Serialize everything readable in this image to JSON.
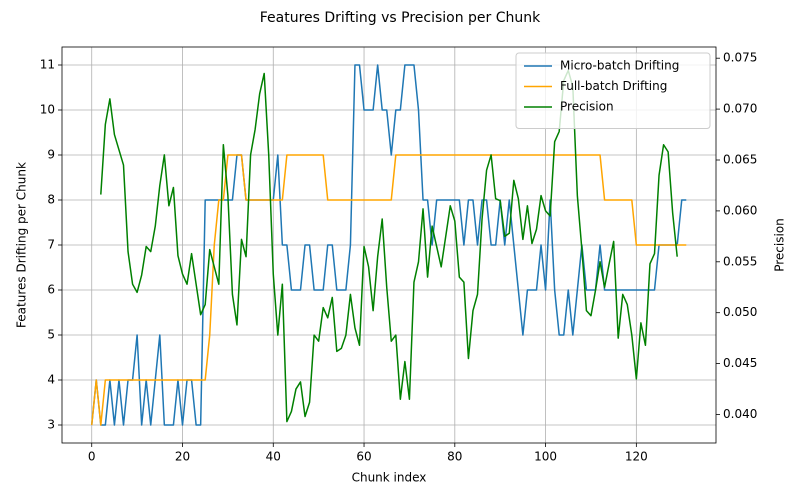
{
  "chart_data": {
    "type": "line",
    "title": "Features Drifting vs Precision per Chunk",
    "xlabel": "Chunk index",
    "ylabel": "Features Drifting per Chunk",
    "y2label": "Precision",
    "x": [
      0,
      1,
      2,
      3,
      4,
      5,
      6,
      7,
      8,
      9,
      10,
      11,
      12,
      13,
      14,
      15,
      16,
      17,
      18,
      19,
      20,
      21,
      22,
      23,
      24,
      25,
      26,
      27,
      28,
      29,
      30,
      31,
      32,
      33,
      34,
      35,
      36,
      37,
      38,
      39,
      40,
      41,
      42,
      43,
      44,
      45,
      46,
      47,
      48,
      49,
      50,
      51,
      52,
      53,
      54,
      55,
      56,
      57,
      58,
      59,
      60,
      61,
      62,
      63,
      64,
      65,
      66,
      67,
      68,
      69,
      70,
      71,
      72,
      73,
      74,
      75,
      76,
      77,
      78,
      79,
      80,
      81,
      82,
      83,
      84,
      85,
      86,
      87,
      88,
      89,
      90,
      91,
      92,
      93,
      94,
      95,
      96,
      97,
      98,
      99,
      100,
      101,
      102,
      103,
      104,
      105,
      106,
      107,
      108,
      109,
      110,
      111,
      112,
      113,
      114,
      115,
      116,
      117,
      118,
      119,
      120,
      121,
      122,
      123,
      124,
      125,
      126,
      127,
      128,
      129,
      130,
      131
    ],
    "xlim": [
      -6.55,
      137.55
    ],
    "xticks": [
      0,
      20,
      40,
      60,
      80,
      100,
      120
    ],
    "ylim": [
      2.6,
      11.4
    ],
    "yticks": [
      3,
      4,
      5,
      6,
      7,
      8,
      9,
      10,
      11
    ],
    "y2lim": [
      0.0372,
      0.0761
    ],
    "y2ticks": [
      {
        "value": 0.04,
        "label": "0.040"
      },
      {
        "value": 0.045,
        "label": "0.045"
      },
      {
        "value": 0.05,
        "label": "0.050"
      },
      {
        "value": 0.055,
        "label": "0.055"
      },
      {
        "value": 0.06,
        "label": "0.060"
      },
      {
        "value": 0.065,
        "label": "0.065"
      },
      {
        "value": 0.07,
        "label": "0.070"
      },
      {
        "value": 0.075,
        "label": "0.075"
      }
    ],
    "grid": true,
    "legend": "upper right",
    "series": [
      {
        "name": "Micro-batch Drifting",
        "color": "#1f77b4",
        "axis": "y",
        "values": [
          3,
          4,
          3,
          3,
          4,
          3,
          4,
          3,
          4,
          4,
          5,
          3,
          4,
          3,
          4,
          5,
          3,
          3,
          3,
          4,
          3,
          4,
          4,
          3,
          3,
          8,
          8,
          8,
          8,
          8,
          8,
          8,
          9,
          9,
          8,
          8,
          8,
          8,
          8,
          8,
          8,
          9,
          7,
          7,
          6,
          6,
          6,
          7,
          7,
          6,
          6,
          6,
          7,
          7,
          6,
          6,
          6,
          7,
          11,
          11,
          10,
          10,
          10,
          11,
          10,
          10,
          9,
          10,
          10,
          11,
          11,
          11,
          10,
          8,
          8,
          7,
          8,
          8,
          8,
          8,
          8,
          8,
          7,
          8,
          8,
          7,
          8,
          8,
          7,
          7,
          8,
          7,
          8,
          7,
          6,
          5,
          6,
          6,
          6,
          7,
          6,
          8,
          6,
          5,
          5,
          6,
          5,
          6,
          7,
          6,
          6,
          6,
          7,
          6,
          6,
          6,
          6,
          6,
          6,
          6,
          6,
          6,
          6,
          6,
          6,
          7,
          7,
          7,
          7,
          7,
          8,
          8
        ]
      },
      {
        "name": "Full-batch Drifting",
        "color": "#ffa500",
        "axis": "y",
        "values": [
          3,
          4,
          3,
          4,
          4,
          4,
          4,
          4,
          4,
          4,
          4,
          4,
          4,
          4,
          4,
          4,
          4,
          4,
          4,
          4,
          4,
          4,
          4,
          4,
          4,
          4,
          5,
          7,
          8,
          8,
          9,
          9,
          9,
          9,
          8,
          8,
          8,
          8,
          8,
          8,
          8,
          8,
          8,
          9,
          9,
          9,
          9,
          9,
          9,
          9,
          9,
          9,
          8,
          8,
          8,
          8,
          8,
          8,
          8,
          8,
          8,
          8,
          8,
          8,
          8,
          8,
          8,
          9,
          9,
          9,
          9,
          9,
          9,
          9,
          9,
          9,
          9,
          9,
          9,
          9,
          9,
          9,
          9,
          9,
          9,
          9,
          9,
          9,
          9,
          9,
          9,
          9,
          9,
          9,
          9,
          9,
          9,
          9,
          9,
          9,
          9,
          9,
          9,
          9,
          9,
          9,
          9,
          9,
          9,
          9,
          9,
          9,
          9,
          8,
          8,
          8,
          8,
          8,
          8,
          8,
          7,
          7,
          7,
          7,
          7,
          7,
          7,
          7,
          7,
          7,
          7,
          7
        ]
      },
      {
        "name": "Precision",
        "color": "#008000",
        "axis": "y2",
        "values": [
          null,
          null,
          0.0616,
          0.0685,
          0.071,
          0.0675,
          0.066,
          0.0645,
          0.056,
          0.0528,
          0.052,
          0.0537,
          0.0565,
          0.056,
          0.0585,
          0.0625,
          0.0655,
          0.0605,
          0.0623,
          0.0556,
          0.0538,
          0.0528,
          0.0558,
          0.0528,
          0.0498,
          0.0508,
          0.0562,
          0.0545,
          0.0528,
          0.0665,
          0.0615,
          0.0518,
          0.0488,
          0.0572,
          0.0555,
          0.0655,
          0.068,
          0.0715,
          0.0735,
          0.0655,
          0.0538,
          0.0478,
          0.0528,
          0.0393,
          0.0403,
          0.0425,
          0.0432,
          0.0398,
          0.0412,
          0.0478,
          0.0472,
          0.0505,
          0.0495,
          0.0515,
          0.0462,
          0.0465,
          0.0478,
          0.0518,
          0.0485,
          0.0468,
          0.0565,
          0.0545,
          0.0502,
          0.0555,
          0.0592,
          0.0525,
          0.0472,
          0.0478,
          0.0415,
          0.0452,
          0.0415,
          0.053,
          0.055,
          0.0602,
          0.0535,
          0.0585,
          0.0565,
          0.0545,
          0.0575,
          0.0605,
          0.059,
          0.0535,
          0.053,
          0.0455,
          0.0502,
          0.0518,
          0.0592,
          0.064,
          0.0655,
          0.0612,
          0.061,
          0.0575,
          0.0578,
          0.063,
          0.0612,
          0.0572,
          0.0605,
          0.0568,
          0.0582,
          0.0615,
          0.06,
          0.0595,
          0.0668,
          0.0678,
          0.0728,
          0.0738,
          0.0722,
          0.0615,
          0.0562,
          0.0502,
          0.0497,
          0.0522,
          0.055,
          0.0525,
          0.0548,
          0.057,
          0.0475,
          0.0518,
          0.0508,
          0.0478,
          0.0435,
          0.049,
          0.0468,
          0.0548,
          0.0558,
          0.0635,
          0.0665,
          0.0658,
          0.0598,
          0.0555,
          null,
          null
        ]
      }
    ]
  }
}
